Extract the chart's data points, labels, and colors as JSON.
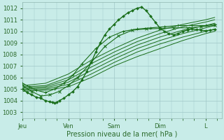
{
  "bg_color": "#c8ece8",
  "grid_color": "#a0c8c8",
  "line_color": "#1a6e1a",
  "xlabel": "Pression niveau de la mer( hPa )",
  "ylim": [
    1002.5,
    1012.5
  ],
  "yticks": [
    1003,
    1004,
    1005,
    1006,
    1007,
    1008,
    1009,
    1010,
    1011,
    1012
  ],
  "xlim": [
    0,
    4.35
  ],
  "day_positions": [
    0.0,
    1.0,
    2.0,
    3.0,
    4.0
  ],
  "day_labels": [
    "Jeu",
    "Ven",
    "Sam",
    "Dim",
    "L"
  ],
  "obs_x": [
    0.0,
    0.1,
    0.2,
    0.3,
    0.4,
    0.5,
    0.6,
    0.65,
    0.7,
    0.75,
    0.8,
    0.9,
    1.0,
    1.1,
    1.2,
    1.3,
    1.4,
    1.5,
    1.6,
    1.7,
    1.8,
    1.9,
    2.0,
    2.1,
    2.2,
    2.3,
    2.4,
    2.5,
    2.6,
    2.7,
    2.8,
    2.9,
    3.0,
    3.1,
    3.2,
    3.3,
    3.4,
    3.5,
    3.6,
    3.7,
    3.8,
    3.9,
    4.0,
    4.1,
    4.2
  ],
  "obs_y": [
    1005.0,
    1004.7,
    1004.5,
    1004.3,
    1004.2,
    1004.0,
    1003.9,
    1003.85,
    1003.8,
    1003.85,
    1004.0,
    1004.2,
    1004.5,
    1004.8,
    1005.2,
    1005.8,
    1006.5,
    1007.3,
    1008.2,
    1009.0,
    1009.7,
    1010.2,
    1010.6,
    1011.0,
    1011.3,
    1011.6,
    1011.8,
    1012.0,
    1012.1,
    1011.8,
    1011.3,
    1010.8,
    1010.3,
    1010.0,
    1009.8,
    1009.7,
    1009.8,
    1010.0,
    1010.1,
    1010.2,
    1010.15,
    1010.1,
    1010.05,
    1010.1,
    1010.15
  ],
  "fc_lines": [
    {
      "x": [
        0.0,
        0.5,
        1.0,
        1.5,
        2.0,
        2.5,
        3.0,
        3.5,
        4.0,
        4.2
      ],
      "y": [
        1004.8,
        1004.9,
        1005.2,
        1006.0,
        1007.0,
        1007.8,
        1008.5,
        1009.2,
        1009.8,
        1010.0
      ]
    },
    {
      "x": [
        0.0,
        0.5,
        1.0,
        1.5,
        2.0,
        2.5,
        3.0,
        3.5,
        4.0,
        4.2
      ],
      "y": [
        1004.9,
        1005.0,
        1005.4,
        1006.3,
        1007.3,
        1008.2,
        1008.9,
        1009.5,
        1010.0,
        1010.2
      ]
    },
    {
      "x": [
        0.0,
        0.5,
        1.0,
        1.5,
        2.0,
        2.5,
        3.0,
        3.5,
        4.0,
        4.2
      ],
      "y": [
        1005.0,
        1005.1,
        1005.6,
        1006.6,
        1007.6,
        1008.5,
        1009.2,
        1009.8,
        1010.3,
        1010.5
      ]
    },
    {
      "x": [
        0.0,
        0.5,
        1.0,
        1.5,
        2.0,
        2.5,
        3.0,
        3.5,
        4.0,
        4.2
      ],
      "y": [
        1005.1,
        1005.2,
        1005.8,
        1006.9,
        1007.9,
        1008.8,
        1009.5,
        1010.1,
        1010.5,
        1010.7
      ]
    },
    {
      "x": [
        0.0,
        0.5,
        1.0,
        1.5,
        2.0,
        2.5,
        3.0,
        3.5,
        4.0,
        4.2
      ],
      "y": [
        1005.2,
        1005.3,
        1006.0,
        1007.2,
        1008.2,
        1009.1,
        1009.8,
        1010.4,
        1010.8,
        1011.0
      ]
    },
    {
      "x": [
        0.0,
        0.5,
        1.0,
        1.5,
        2.0,
        2.5,
        3.0,
        3.5,
        4.0,
        4.2
      ],
      "y": [
        1005.3,
        1005.5,
        1006.3,
        1007.5,
        1008.5,
        1009.4,
        1010.1,
        1010.6,
        1011.0,
        1011.2
      ]
    }
  ],
  "marker_line1_x": [
    0.0,
    0.15,
    0.3,
    0.5,
    0.7,
    0.9,
    1.1,
    1.3,
    1.6,
    1.9,
    2.2,
    2.5,
    2.8,
    3.1,
    3.4,
    3.7,
    4.0,
    4.2
  ],
  "marker_line1_y": [
    1005.5,
    1005.2,
    1004.9,
    1004.7,
    1005.0,
    1005.5,
    1006.2,
    1007.2,
    1008.5,
    1009.5,
    1010.0,
    1010.2,
    1010.3,
    1010.4,
    1010.5,
    1010.5,
    1010.5,
    1010.6
  ],
  "marker_line2_x": [
    0.0,
    0.2,
    0.4,
    0.6,
    0.8,
    1.0,
    1.2,
    1.5,
    1.8,
    2.1,
    2.4,
    2.7,
    3.0,
    3.3,
    3.6,
    3.9,
    4.2
  ],
  "marker_line2_y": [
    1005.3,
    1004.8,
    1004.4,
    1004.5,
    1004.8,
    1005.3,
    1006.0,
    1007.3,
    1008.7,
    1009.6,
    1010.1,
    1010.2,
    1010.25,
    1010.3,
    1010.3,
    1010.4,
    1010.5
  ]
}
